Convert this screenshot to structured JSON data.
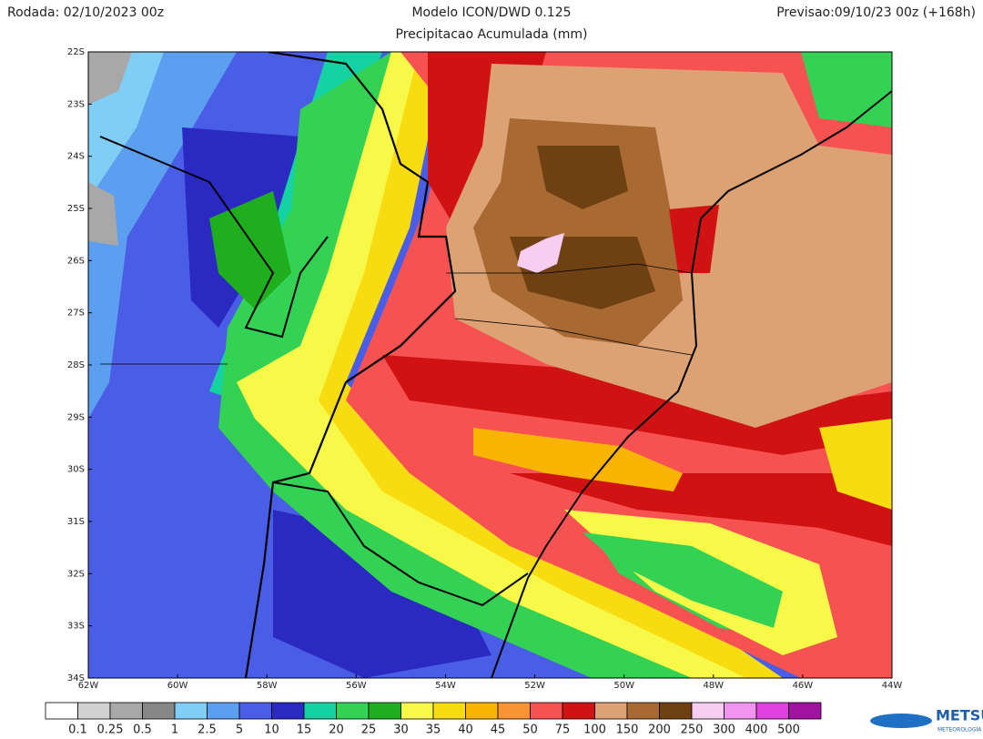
{
  "header": {
    "left": "Rodada: 02/10/2023 00z",
    "title": "Modelo ICON/DWD 0.125",
    "subtitle": "Precipitacao Acumulada (mm)",
    "right": "Previsao:09/10/23 00z (+168h)"
  },
  "map": {
    "lat_ticks": [
      "22S",
      "23S",
      "24S",
      "25S",
      "26S",
      "27S",
      "28S",
      "29S",
      "30S",
      "31S",
      "32S",
      "33S",
      "34S"
    ],
    "lon_ticks": [
      "62W",
      "60W",
      "58W",
      "56W",
      "54W",
      "52W",
      "50W",
      "48W",
      "46W",
      "44W"
    ]
  },
  "legend": {
    "colors": [
      "#ffffff",
      "#d2d2d2",
      "#a8a8a8",
      "#878787",
      "#80cdf6",
      "#5c9ef0",
      "#4a5de6",
      "#2a2ac2",
      "#14d2a2",
      "#34d254",
      "#1eae1e",
      "#f8f848",
      "#f6dc10",
      "#f8b400",
      "#f89434",
      "#f75252",
      "#d01212",
      "#dca274",
      "#a86a32",
      "#6e4012",
      "#f8cdf2",
      "#f094f0",
      "#e042e0",
      "#a012a0"
    ],
    "labels": [
      "0.1",
      "0.25",
      "0.5",
      "1",
      "2.5",
      "5",
      "10",
      "15",
      "20",
      "25",
      "30",
      "35",
      "40",
      "45",
      "50",
      "75",
      "100",
      "150",
      "200",
      "250",
      "300",
      "400",
      "500"
    ]
  },
  "logo": {
    "name": "METSUL",
    "tagline": "METEOROLOGIA"
  }
}
